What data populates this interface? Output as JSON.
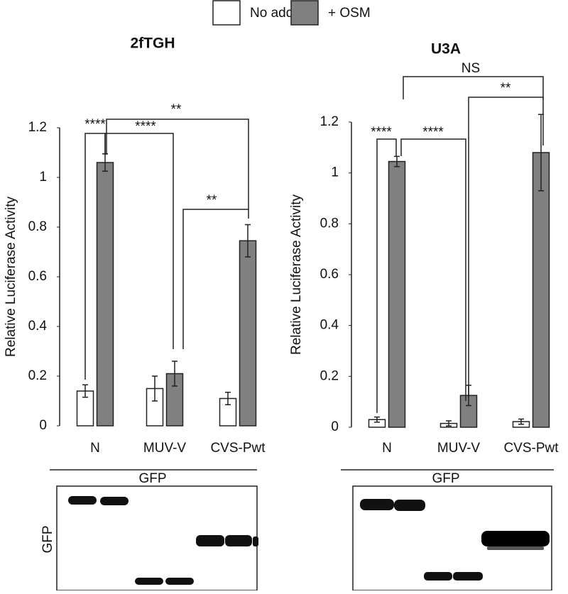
{
  "chart_data": [
    {
      "type": "bar",
      "title": "2fTGH",
      "y_label": "Relative Luciferase  Activity",
      "categories": [
        "N",
        "MUV-V",
        "CVS-Pwt"
      ],
      "series": [
        {
          "name": "No add.",
          "color": "#ffffff",
          "values": [
            0.14,
            0.15,
            0.11
          ],
          "errors": [
            0.025,
            0.05,
            0.025
          ]
        },
        {
          "name": "+ OSM",
          "color": "#808080",
          "values": [
            1.06,
            0.21,
            0.745
          ],
          "errors": [
            0.035,
            0.05,
            0.065
          ]
        }
      ],
      "ylim": [
        0,
        1.2
      ],
      "yticks": [
        0,
        0.2,
        0.4,
        0.6,
        0.8,
        1,
        1.2
      ],
      "annotations": [
        "****",
        "****",
        "**",
        "**"
      ]
    },
    {
      "type": "bar",
      "title": "U3A",
      "y_label": "Relative Luciferase  Activity",
      "categories": [
        "N",
        "MUV-V",
        "CVS-Pwt"
      ],
      "series": [
        {
          "color": "#ffffff",
          "values": [
            0.03,
            0.015,
            0.022
          ],
          "errors": [
            0.01,
            0.01,
            0.01
          ]
        },
        {
          "color": "#808080",
          "values": [
            1.045,
            0.125,
            1.08
          ],
          "errors": [
            0.02,
            0.04,
            0.15
          ]
        }
      ],
      "ylim": [
        0,
        1.2
      ],
      "yticks": [
        0,
        0.2,
        0.4,
        0.6,
        0.8,
        1,
        1.2
      ],
      "annotations": [
        "****",
        "****",
        "NS",
        "**"
      ]
    }
  ],
  "blots": [
    {
      "header": "GFP",
      "side_label": "GFP"
    },
    {
      "header": "GFP"
    }
  ]
}
